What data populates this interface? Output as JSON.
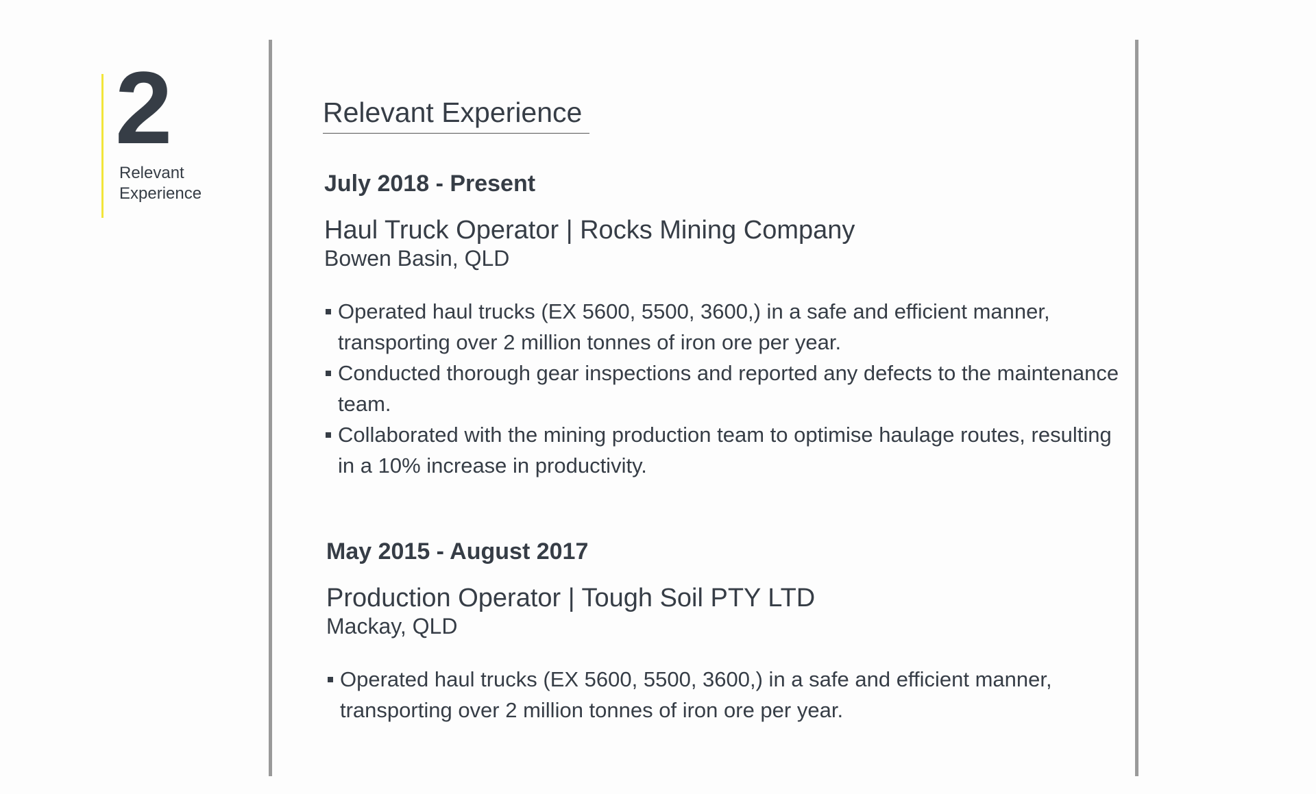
{
  "sidebar": {
    "number": "2",
    "label": "Relevant Experience"
  },
  "section": {
    "title": "Relevant Experience"
  },
  "jobs": [
    {
      "dates": "July 2018 - Present",
      "title": "Haul Truck Operator | Rocks Mining Company",
      "location": "Bowen Basin, QLD",
      "bullets": [
        "Operated haul trucks (EX 5600, 5500, 3600,) in a safe and efficient manner, transporting over 2 million tonnes of iron ore per year.",
        "Conducted thorough gear inspections and reported any defects to the maintenance team.",
        "Collaborated with the mining production team to optimise haulage routes, resulting in a 10% increase in productivity."
      ]
    },
    {
      "dates": "May 2015 - August 2017",
      "title": "Production Operator | Tough Soil PTY LTD",
      "location": "Mackay, QLD",
      "bullets": [
        "Operated haul trucks (EX 5600, 5500, 3600,) in a safe and efficient manner, transporting over 2 million tonnes of iron ore per year."
      ]
    }
  ]
}
